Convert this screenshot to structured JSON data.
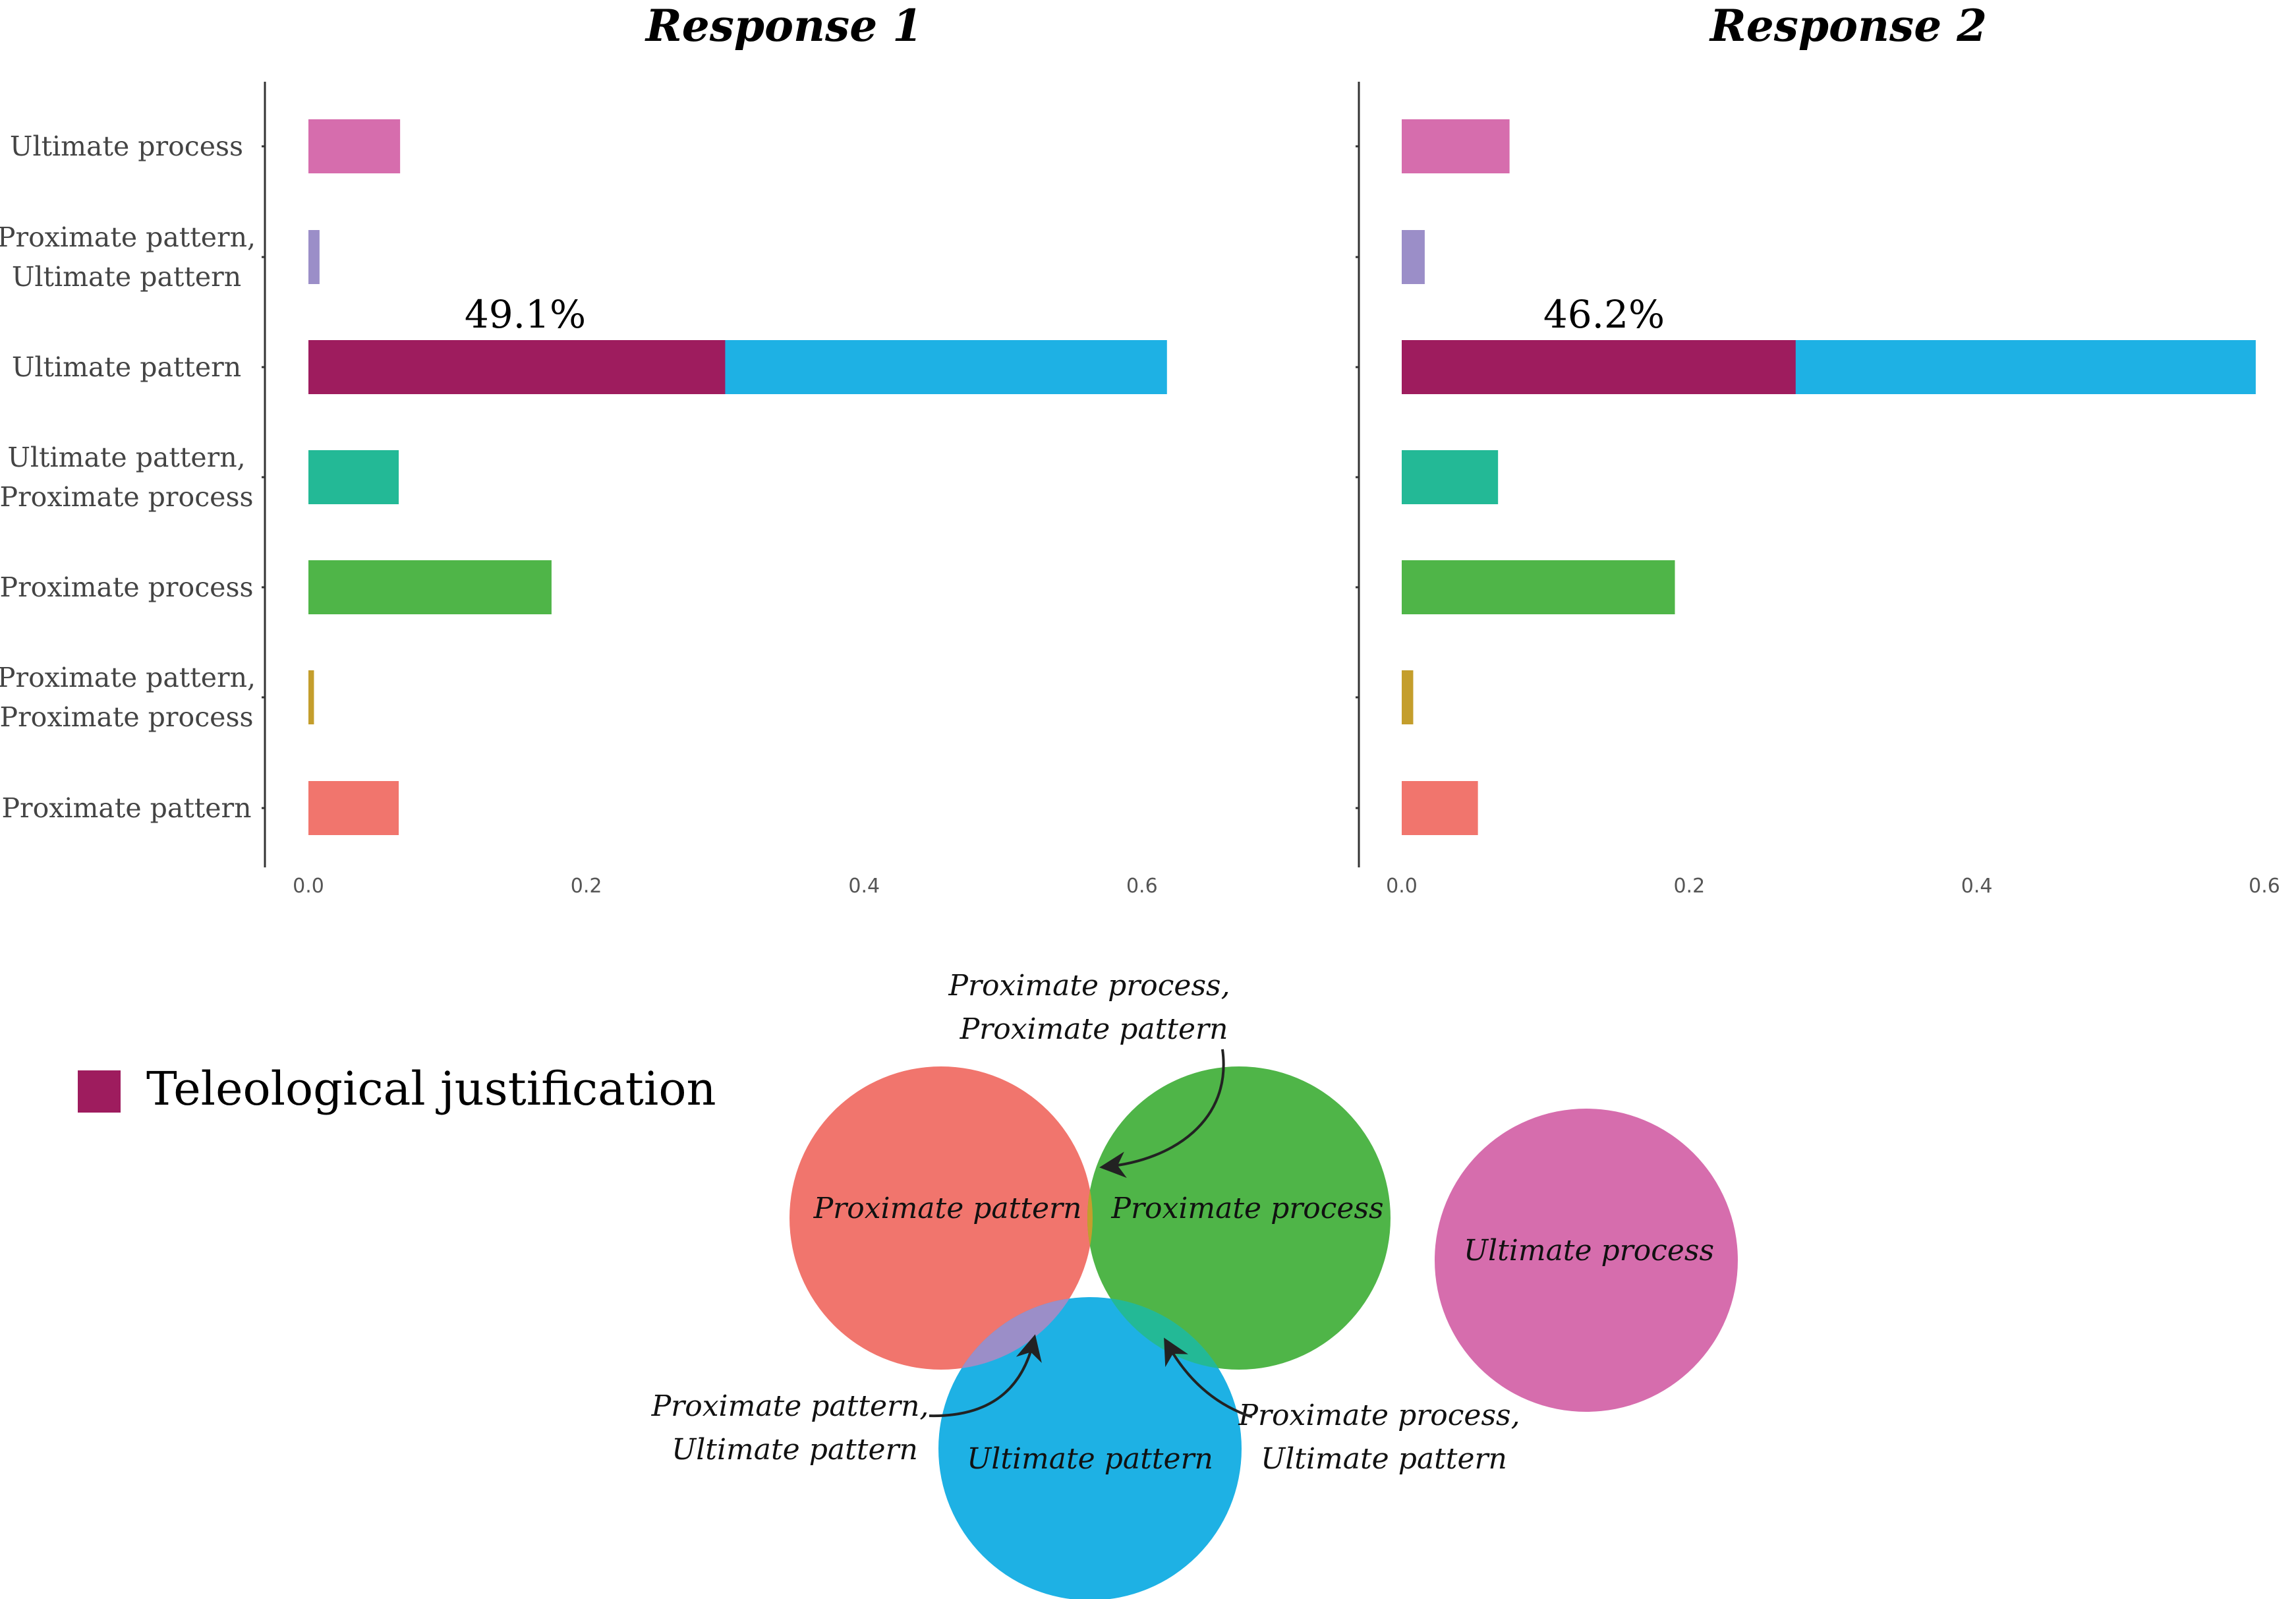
{
  "chart_data": [
    {
      "type": "bar",
      "orientation": "horizontal",
      "title": "Response 1",
      "categories": [
        "Ultimate process",
        "Proximate pattern, Ultimate pattern",
        "Ultimate pattern",
        "Ultimate pattern, Proximate process",
        "Proximate process",
        "Proximate pattern, Proximate process",
        "Proximate pattern"
      ],
      "category_lines": [
        [
          "Ultimate process"
        ],
        [
          "Proximate pattern,",
          "Ultimate pattern"
        ],
        [
          "Ultimate pattern"
        ],
        [
          "Ultimate pattern,",
          "Proximate process"
        ],
        [
          "Proximate process"
        ],
        [
          "Proximate pattern,",
          "Proximate process"
        ],
        [
          "Proximate pattern"
        ]
      ],
      "values": [
        0.066,
        0.008,
        0.618,
        0.065,
        0.175,
        0.004,
        0.065
      ],
      "teleological": [
        0,
        0,
        0.3,
        0,
        0,
        0,
        0
      ],
      "colors": [
        "#d66dad",
        "#9b8ec8",
        "#1eb1e4",
        "#23b996",
        "#4fb548",
        "#c49e2c",
        "#f1756d"
      ],
      "annotation": {
        "category": "Ultimate pattern",
        "text": "49.1%"
      },
      "xlim": [
        0,
        0.62
      ],
      "xticks": [
        "0.0",
        "0.2",
        "0.4",
        "0.6"
      ],
      "grid": false
    },
    {
      "type": "bar",
      "orientation": "horizontal",
      "title": "Response 2",
      "categories": [
        "Ultimate process",
        "Proximate pattern, Ultimate pattern",
        "Ultimate pattern",
        "Ultimate pattern, Proximate process",
        "Proximate process",
        "Proximate pattern, Proximate process",
        "Proximate pattern"
      ],
      "values": [
        0.075,
        0.016,
        0.594,
        0.067,
        0.19,
        0.008,
        0.053
      ],
      "teleological": [
        0,
        0,
        0.274,
        0,
        0,
        0,
        0
      ],
      "colors": [
        "#d66dad",
        "#9b8ec8",
        "#1eb1e4",
        "#23b996",
        "#4fb548",
        "#c49e2c",
        "#f1756d"
      ],
      "annotation": {
        "category": "Ultimate pattern",
        "text": "46.2%"
      },
      "xlim": [
        0,
        0.6
      ],
      "xticks": [
        "0.0",
        "0.2",
        "0.4",
        "0.6"
      ],
      "grid": false
    }
  ],
  "legend": {
    "label": "Teleological justification",
    "color": "#9e1c5e",
    "placement": "left"
  },
  "venn": {
    "circles": [
      {
        "label": "Proximate pattern",
        "color": "#f1756d"
      },
      {
        "label": "Proximate process",
        "color": "#4fb548"
      },
      {
        "label": "Ultimate pattern",
        "color": "#1eb1e4"
      },
      {
        "label": "Ultimate process",
        "color": "#d66dad"
      }
    ],
    "overlaps": [
      {
        "lines": [
          "Proximate process,",
          "Proximate pattern"
        ],
        "color": "#c49e2c"
      },
      {
        "lines": [
          "Proximate pattern,",
          "Ultimate pattern"
        ],
        "color": "#9b8ec8"
      },
      {
        "lines": [
          "Proximate process,",
          "Ultimate pattern"
        ],
        "color": "#23b996"
      }
    ]
  }
}
